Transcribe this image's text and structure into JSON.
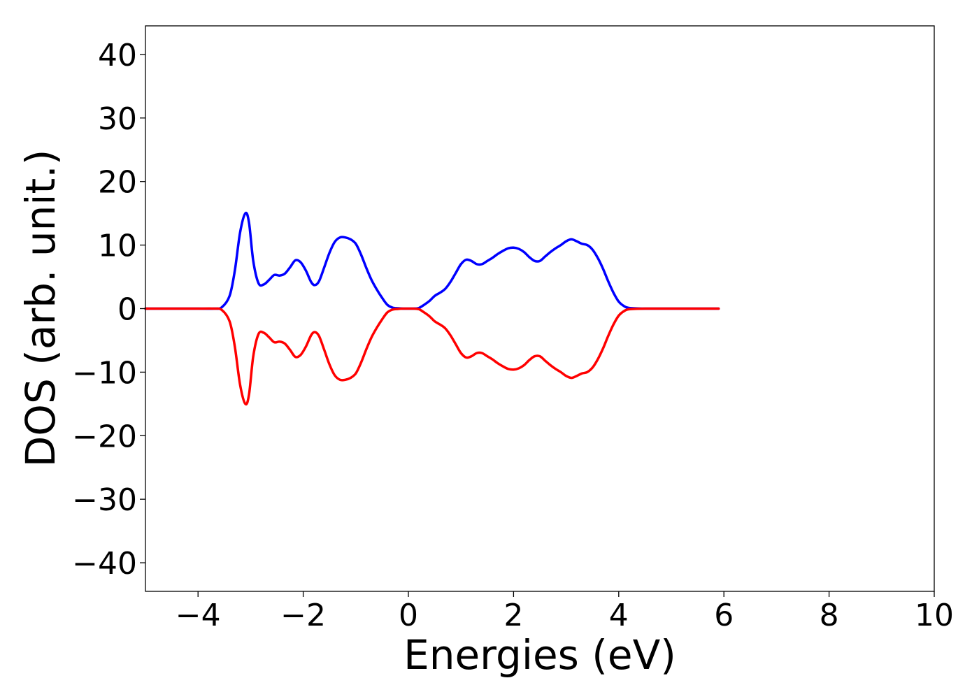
{
  "chart_data": {
    "type": "line",
    "title": "",
    "xlabel": "Energies (eV)",
    "ylabel": "DOS (arb. unit.)",
    "xlim": [
      -5,
      10
    ],
    "ylim": [
      -44.5,
      44.5
    ],
    "xticks": [
      -4,
      -2,
      0,
      2,
      4,
      6,
      8,
      10
    ],
    "xtick_labels": [
      "−4",
      "−2",
      "0",
      "2",
      "4",
      "6",
      "8",
      "10"
    ],
    "yticks": [
      40,
      30,
      20,
      10,
      0,
      -10,
      -20,
      -30,
      -40
    ],
    "ytick_labels": [
      "40",
      "30",
      "20",
      "10",
      "0",
      "−10",
      "−20",
      "−30",
      "−40"
    ],
    "grid": false,
    "legend": "none",
    "series": [
      {
        "color": "#0000ff",
        "x": [
          -5.0,
          -4.0,
          -3.7,
          -3.55,
          -3.4,
          -3.3,
          -3.2,
          -3.1,
          -3.03,
          -2.95,
          -2.85,
          -2.75,
          -2.65,
          -2.55,
          -2.45,
          -2.35,
          -2.25,
          -2.15,
          -2.05,
          -1.95,
          -1.85,
          -1.78,
          -1.7,
          -1.6,
          -1.5,
          -1.4,
          -1.3,
          -1.2,
          -1.1,
          -1.0,
          -0.9,
          -0.8,
          -0.7,
          -0.6,
          -0.5,
          -0.4,
          -0.3,
          -0.2,
          -0.1,
          0.0,
          0.1,
          0.2,
          0.3,
          0.4,
          0.5,
          0.6,
          0.7,
          0.8,
          0.9,
          1.0,
          1.1,
          1.2,
          1.3,
          1.4,
          1.5,
          1.6,
          1.7,
          1.8,
          1.9,
          2.0,
          2.1,
          2.2,
          2.3,
          2.4,
          2.5,
          2.6,
          2.7,
          2.8,
          2.9,
          3.0,
          3.1,
          3.2,
          3.3,
          3.4,
          3.5,
          3.6,
          3.7,
          3.8,
          3.9,
          4.0,
          4.1,
          4.2,
          4.5,
          5.0,
          5.9
        ],
        "y": [
          0,
          0,
          0,
          0.2,
          2,
          6,
          12,
          15,
          13.5,
          7.5,
          4,
          3.8,
          4.5,
          5.3,
          5.2,
          5.5,
          6.5,
          7.6,
          7.3,
          6,
          4.2,
          3.7,
          4.3,
          6.5,
          8.8,
          10.5,
          11.2,
          11.2,
          10.9,
          10.2,
          8.5,
          6.4,
          4.5,
          3,
          1.7,
          0.6,
          0.15,
          0.05,
          0,
          0,
          0,
          0.1,
          0.6,
          1.2,
          2,
          2.5,
          3.1,
          4.2,
          5.6,
          7,
          7.7,
          7.5,
          7,
          7,
          7.5,
          8,
          8.6,
          9.1,
          9.5,
          9.6,
          9.4,
          8.9,
          8.1,
          7.5,
          7.5,
          8.2,
          8.9,
          9.5,
          10,
          10.6,
          10.9,
          10.6,
          10.2,
          10,
          9.3,
          8,
          6.3,
          4.3,
          2.5,
          1.1,
          0.4,
          0.1,
          0,
          0,
          0
        ]
      },
      {
        "color": "#ff0000",
        "x": [
          -5.0,
          -4.0,
          -3.7,
          -3.55,
          -3.4,
          -3.3,
          -3.2,
          -3.1,
          -3.03,
          -2.95,
          -2.85,
          -2.75,
          -2.65,
          -2.55,
          -2.45,
          -2.35,
          -2.25,
          -2.15,
          -2.05,
          -1.95,
          -1.85,
          -1.78,
          -1.7,
          -1.6,
          -1.5,
          -1.4,
          -1.3,
          -1.2,
          -1.1,
          -1.0,
          -0.9,
          -0.8,
          -0.7,
          -0.6,
          -0.5,
          -0.4,
          -0.3,
          -0.2,
          -0.1,
          0.0,
          0.1,
          0.2,
          0.3,
          0.4,
          0.5,
          0.6,
          0.7,
          0.8,
          0.9,
          1.0,
          1.1,
          1.2,
          1.3,
          1.4,
          1.5,
          1.6,
          1.7,
          1.8,
          1.9,
          2.0,
          2.1,
          2.2,
          2.3,
          2.4,
          2.5,
          2.6,
          2.7,
          2.8,
          2.9,
          3.0,
          3.1,
          3.2,
          3.3,
          3.4,
          3.5,
          3.6,
          3.7,
          3.8,
          3.9,
          4.0,
          4.1,
          4.2,
          4.5,
          5.0,
          5.9
        ],
        "y": [
          0,
          0,
          0,
          -0.2,
          -2,
          -6,
          -12,
          -15,
          -13.5,
          -7.5,
          -4,
          -3.8,
          -4.5,
          -5.3,
          -5.2,
          -5.5,
          -6.5,
          -7.6,
          -7.3,
          -6,
          -4.2,
          -3.7,
          -4.3,
          -6.5,
          -8.8,
          -10.5,
          -11.2,
          -11.2,
          -10.9,
          -10.2,
          -8.5,
          -6.4,
          -4.5,
          -3,
          -1.7,
          -0.6,
          -0.15,
          -0.05,
          0,
          0,
          0,
          -0.1,
          -0.6,
          -1.2,
          -2,
          -2.5,
          -3.1,
          -4.2,
          -5.6,
          -7,
          -7.7,
          -7.5,
          -7,
          -7,
          -7.5,
          -8,
          -8.6,
          -9.1,
          -9.5,
          -9.6,
          -9.4,
          -8.9,
          -8.1,
          -7.5,
          -7.5,
          -8.2,
          -8.9,
          -9.5,
          -10,
          -10.6,
          -10.9,
          -10.6,
          -10.2,
          -10,
          -9.3,
          -8,
          -6.3,
          -4.3,
          -2.5,
          -1.1,
          -0.4,
          -0.1,
          0,
          0,
          0
        ]
      }
    ]
  }
}
